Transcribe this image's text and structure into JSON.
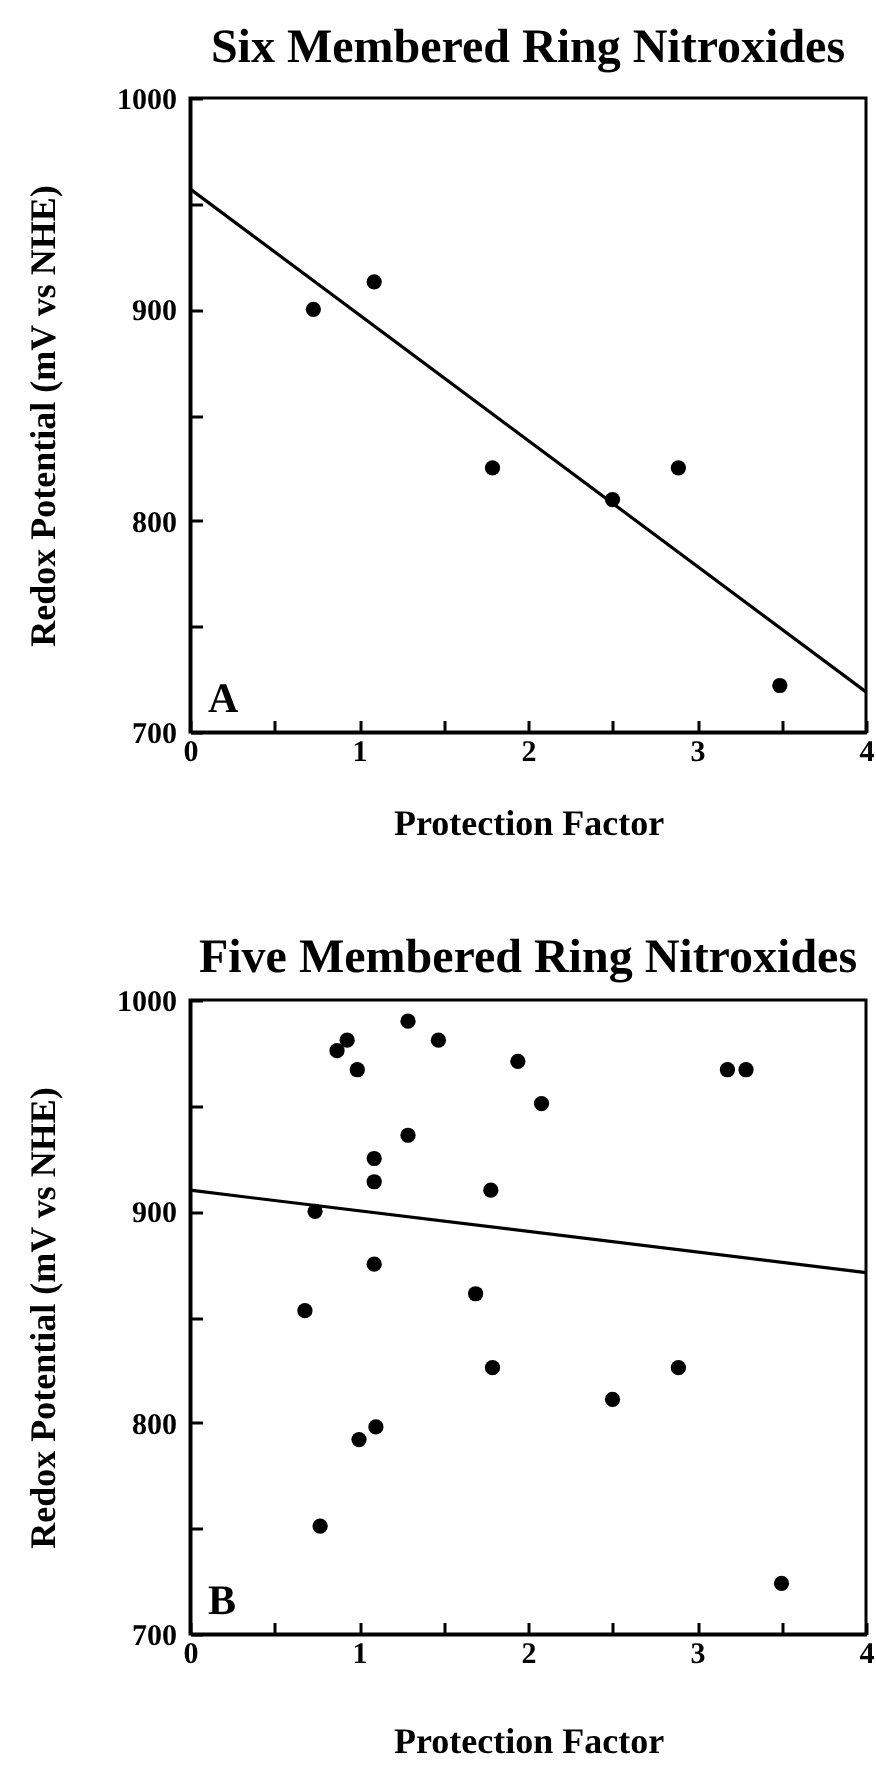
{
  "chart_data": [
    {
      "type": "scatter",
      "title": "Six Membered Ring Nitroxides",
      "xlabel": "Protection Factor",
      "ylabel": "Redox Potential (mV vs NHE)",
      "annotations": [
        "A"
      ],
      "xlim": [
        0,
        4
      ],
      "xticks": [
        0,
        {
          "value": 0.5,
          "label": null
        },
        1,
        {
          "value": 1.5,
          "label": null
        },
        2,
        {
          "value": 2.5,
          "label": null
        },
        3,
        {
          "value": 3.5,
          "label": null
        },
        4
      ],
      "ylim": [
        700,
        1000
      ],
      "yticks": [
        700,
        {
          "value": 750,
          "label": null
        },
        800,
        {
          "value": 850,
          "label": null
        },
        900,
        {
          "value": 950,
          "label": null
        },
        1000
      ],
      "series": [
        {
          "color": "#000000",
          "marker": "circle",
          "x": [
            0.73,
            1.09,
            1.79,
            2.5,
            2.89,
            3.49
          ],
          "values": [
            900,
            913,
            825,
            810,
            825,
            722
          ]
        },
        {
          "type": "line",
          "color": "#000000",
          "x": [
            0,
            4
          ],
          "values": [
            957,
            719
          ]
        }
      ]
    },
    {
      "type": "scatter",
      "title": "Five Membered Ring Nitroxides",
      "xlabel": "Protection Factor",
      "ylabel": "Redox Potential (mV vs NHE)",
      "annotations": [
        "B"
      ],
      "xlim": [
        0,
        4
      ],
      "xticks": [
        0,
        {
          "value": 0.5,
          "label": null
        },
        1,
        {
          "value": 1.5,
          "label": null
        },
        2,
        {
          "value": 2.5,
          "label": null
        },
        3,
        {
          "value": 3.5,
          "label": null
        },
        4
      ],
      "ylim": [
        700,
        1000
      ],
      "yticks": [
        700,
        {
          "value": 750,
          "label": null
        },
        800,
        {
          "value": 850,
          "label": null
        },
        900,
        {
          "value": 950,
          "label": null
        },
        1000
      ],
      "series": [
        {
          "color": "#000000",
          "marker": "circle",
          "x": [
            1.29,
            0.87,
            0.93,
            1.47,
            0.99,
            1.94,
            3.18,
            3.29,
            2.08,
            1.29,
            1.09,
            1.09,
            1.78,
            0.74,
            1.09,
            1.69,
            0.68,
            1.79,
            2.89,
            2.5,
            1.1,
            1.0,
            0.77,
            3.5
          ],
          "values": [
            990,
            976,
            981,
            981,
            967,
            971,
            967,
            967,
            951,
            936,
            925,
            914,
            910,
            900,
            875,
            861,
            853,
            826,
            826,
            811,
            798,
            792,
            751,
            724
          ]
        },
        {
          "type": "line",
          "color": "#000000",
          "x": [
            0,
            4
          ],
          "values": [
            910,
            871
          ]
        }
      ]
    }
  ]
}
